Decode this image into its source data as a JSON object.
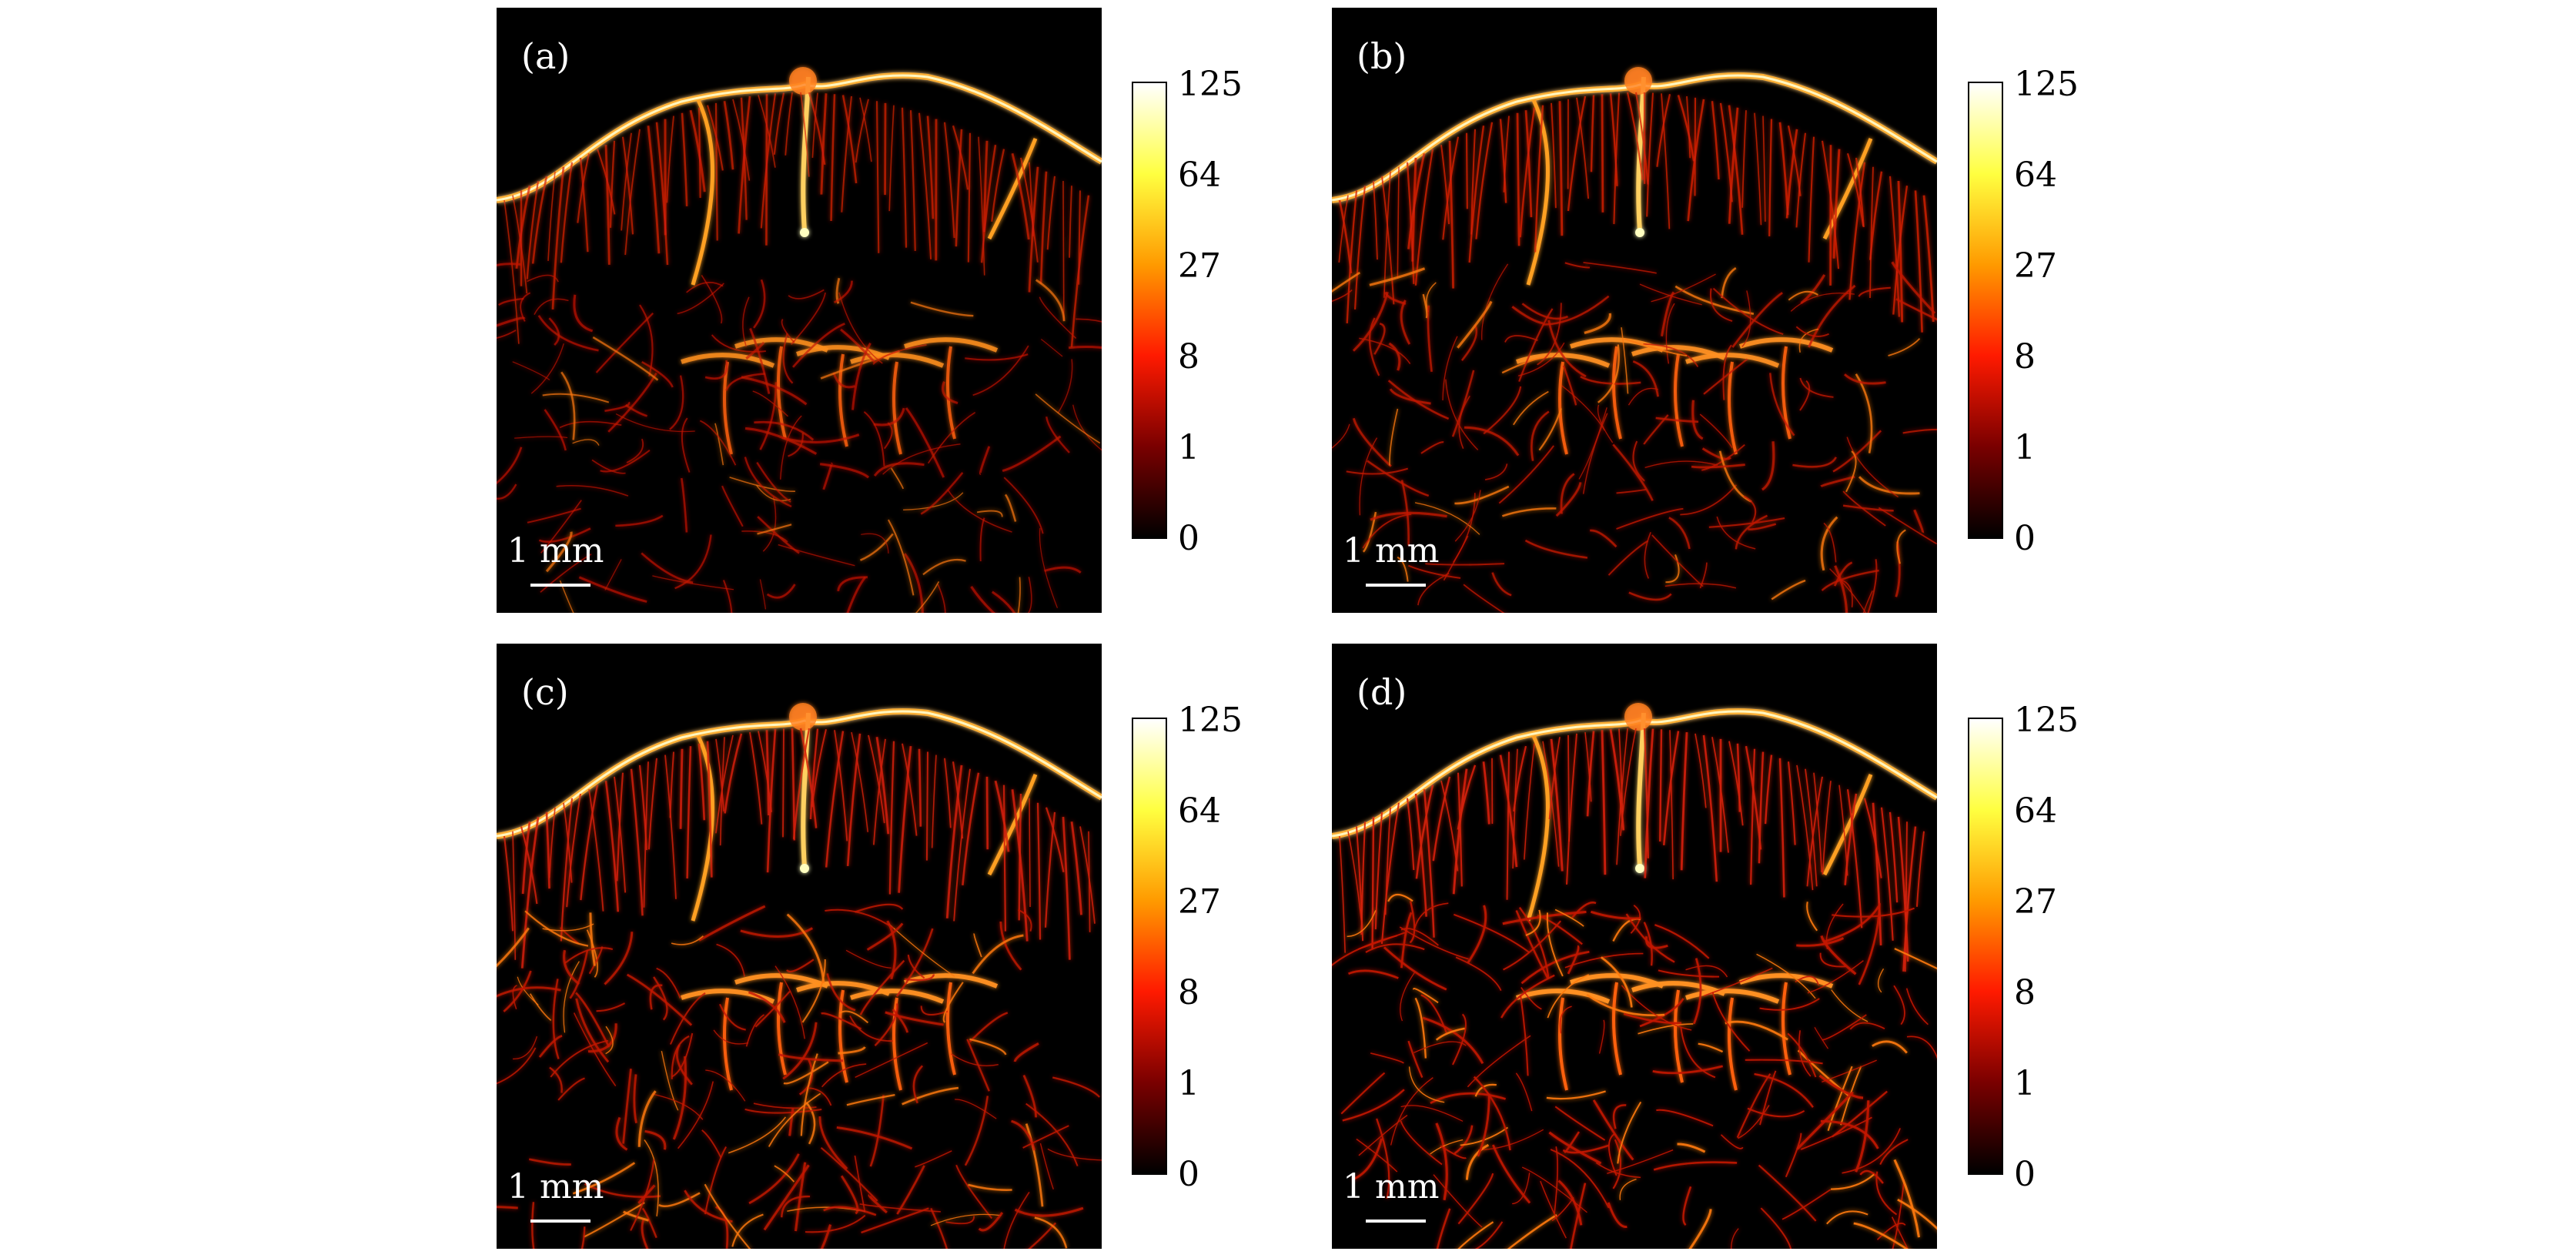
{
  "panels": [
    {
      "label": "(a)",
      "scale_text": "1 mm",
      "intensity": 0.55
    },
    {
      "label": "(b)",
      "scale_text": "1 mm",
      "intensity": 0.75
    },
    {
      "label": "(c)",
      "scale_text": "1 mm",
      "intensity": 0.85
    },
    {
      "label": "(d)",
      "scale_text": "1 mm",
      "intensity": 1.0
    }
  ],
  "colorbar": {
    "ticks": [
      "125",
      "64",
      "27",
      "8",
      "1",
      "0"
    ],
    "colors": [
      "#ffffff",
      "#ffff40",
      "#ff9a00",
      "#ff1a00",
      "#7a0000",
      "#000000"
    ]
  }
}
